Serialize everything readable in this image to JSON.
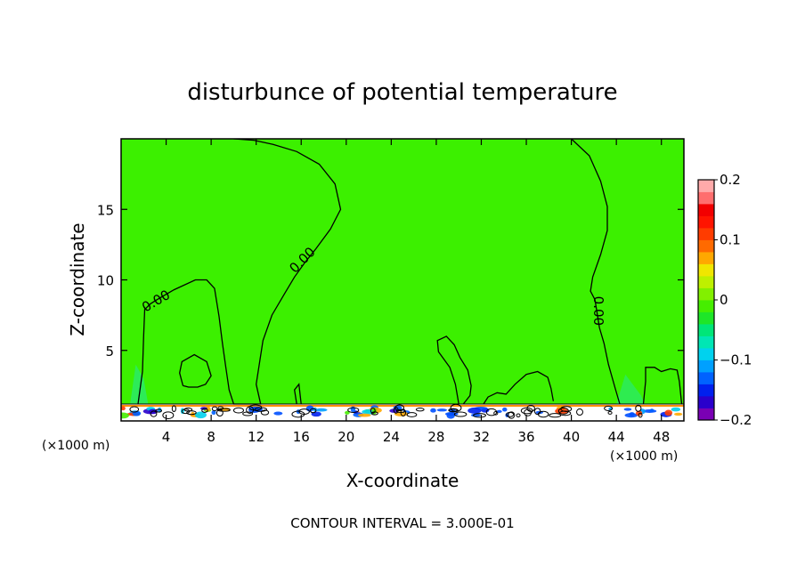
{
  "chart_data": {
    "type": "heatmap",
    "title": "disturbunce of potential temperature",
    "xlabel": "X-coordinate",
    "ylabel": "Z-coordinate",
    "x_unit_left": "(×1000 m)",
    "x_unit_right": "(×1000 m)",
    "xlim": [
      0,
      50
    ],
    "ylim": [
      0,
      20
    ],
    "x_ticks": [
      4,
      8,
      12,
      16,
      20,
      24,
      28,
      32,
      36,
      40,
      44,
      48
    ],
    "y_ticks": [
      5,
      10,
      15
    ],
    "contour_interval_text": "CONTOUR INTERVAL = 3.000E-01",
    "contour_label": "0.00",
    "field_value": 0.0,
    "colorbar": {
      "range": [
        -0.2,
        0.2
      ],
      "tick_values": [
        0.2,
        0.1,
        0,
        -0.1,
        -0.2
      ],
      "tick_labels": [
        "0.2",
        "0.1",
        "0",
        "−0.1",
        "−0.2"
      ],
      "colors": [
        "#7a00b4",
        "#2a00cc",
        "#0020ee",
        "#0062ff",
        "#00a0ff",
        "#00d2ee",
        "#00e6b4",
        "#00e678",
        "#1ee628",
        "#46ee00",
        "#82f000",
        "#bef000",
        "#f0e600",
        "#ffa800",
        "#ff6a00",
        "#ff3c00",
        "#ff1400",
        "#f20000",
        "#ff6e6e",
        "#ffaaaa"
      ]
    },
    "contours_zero": [
      [
        [
          1.5,
          1.2
        ],
        [
          1.9,
          3.5
        ],
        [
          2.0,
          6.0
        ],
        [
          2.1,
          7.9
        ],
        [
          2.6,
          8.3
        ],
        [
          3.2,
          8.6
        ],
        [
          4.7,
          9.3
        ],
        [
          6.6,
          10.0
        ],
        [
          7.6,
          10.0
        ],
        [
          8.3,
          9.4
        ],
        [
          8.7,
          7.4
        ],
        [
          9.0,
          5.5
        ],
        [
          9.3,
          3.8
        ],
        [
          9.6,
          2.2
        ],
        [
          10.0,
          1.2
        ],
        [
          11.0,
          1.2
        ],
        [
          12.4,
          1.2
        ],
        [
          12.0,
          2.6
        ],
        [
          12.6,
          5.7
        ],
        [
          13.4,
          7.5
        ],
        [
          14.5,
          9.0
        ],
        [
          15.4,
          10.2
        ],
        [
          16.3,
          11.2
        ],
        [
          17.3,
          12.2
        ],
        [
          18.6,
          13.6
        ],
        [
          19.5,
          15.0
        ],
        [
          19.0,
          16.8
        ],
        [
          17.6,
          18.2
        ],
        [
          15.6,
          19.1
        ],
        [
          13.5,
          19.6
        ],
        [
          11.8,
          19.9
        ],
        [
          10.0,
          20.0
        ]
      ],
      [
        [
          40.0,
          20.0
        ],
        [
          41.6,
          18.8
        ],
        [
          42.6,
          17.0
        ],
        [
          43.2,
          15.2
        ],
        [
          43.2,
          13.5
        ],
        [
          42.6,
          11.8
        ],
        [
          41.9,
          10.2
        ],
        [
          41.7,
          9.2
        ],
        [
          42.1,
          8.6
        ],
        [
          42.5,
          6.6
        ],
        [
          42.9,
          5.5
        ],
        [
          43.3,
          4.0
        ],
        [
          43.9,
          2.3
        ],
        [
          44.3,
          1.2
        ]
      ],
      [
        [
          5.5,
          2.5
        ],
        [
          5.2,
          3.4
        ],
        [
          5.4,
          4.2
        ],
        [
          6.5,
          4.7
        ],
        [
          7.6,
          4.2
        ],
        [
          8.0,
          3.2
        ],
        [
          7.5,
          2.6
        ],
        [
          6.8,
          2.4
        ],
        [
          6.0,
          2.4
        ],
        [
          5.5,
          2.5
        ]
      ],
      [
        [
          15.6,
          1.2
        ],
        [
          15.4,
          2.2
        ],
        [
          15.8,
          2.6
        ],
        [
          16.0,
          1.2
        ]
      ],
      [
        [
          30.0,
          1.2
        ],
        [
          29.7,
          2.6
        ],
        [
          29.2,
          3.8
        ],
        [
          28.2,
          4.9
        ],
        [
          28.1,
          5.7
        ],
        [
          28.9,
          6.0
        ],
        [
          29.6,
          5.4
        ],
        [
          30.1,
          4.5
        ],
        [
          30.8,
          3.6
        ],
        [
          31.1,
          2.5
        ],
        [
          31.0,
          1.8
        ],
        [
          30.4,
          1.2
        ]
      ],
      [
        [
          32.2,
          1.2
        ],
        [
          32.6,
          1.7
        ],
        [
          33.4,
          2.0
        ],
        [
          34.2,
          1.9
        ],
        [
          35.0,
          2.6
        ],
        [
          36.0,
          3.3
        ],
        [
          37.0,
          3.5
        ],
        [
          37.9,
          3.1
        ],
        [
          38.2,
          2.3
        ],
        [
          38.4,
          1.4
        ]
      ],
      [
        [
          46.4,
          1.2
        ],
        [
          46.6,
          2.8
        ],
        [
          46.6,
          3.8
        ],
        [
          47.4,
          3.8
        ],
        [
          48.0,
          3.5
        ],
        [
          48.8,
          3.7
        ],
        [
          49.4,
          3.6
        ],
        [
          49.6,
          2.8
        ],
        [
          49.8,
          1.2
        ]
      ]
    ]
  }
}
